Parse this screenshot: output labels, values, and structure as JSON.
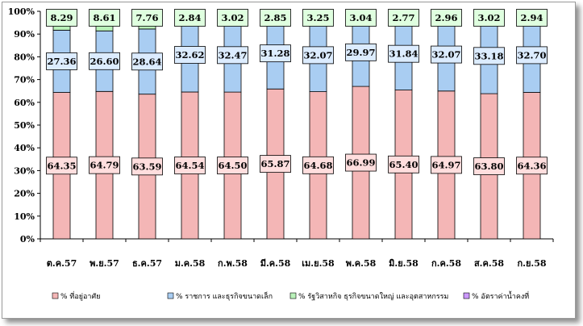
{
  "chart_data": {
    "type": "bar",
    "stacked": true,
    "categories": [
      "ต.ค.57",
      "พ.ย.57",
      "ธ.ค.57",
      "ม.ค.58",
      "ก.พ.58",
      "มี.ค.58",
      "เม.ย.58",
      "พ.ค.58",
      "มิ.ย.58",
      "ก.ค.58",
      "ส.ค.58",
      "ก.ย.58"
    ],
    "series": [
      {
        "name": "% ที่อยู่อาศัย",
        "color": "#f4b6b6",
        "values": [
          64.35,
          64.79,
          63.59,
          64.54,
          64.5,
          65.87,
          64.68,
          66.99,
          65.4,
          64.97,
          63.8,
          64.36
        ]
      },
      {
        "name": "% ราชการ และธุรกิจขนาดเล็ก",
        "color": "#a9cdf2",
        "values": [
          27.36,
          26.6,
          28.64,
          32.62,
          32.47,
          31.28,
          32.07,
          29.97,
          31.84,
          32.07,
          33.18,
          32.7
        ]
      },
      {
        "name": "% รัฐวิสาหกิจ ธุรกิจขนาดใหญ่ และอุตสาหกรรม",
        "color": "#b9f2b9",
        "values": [
          8.29,
          8.61,
          7.76,
          2.84,
          3.02,
          2.85,
          3.25,
          3.04,
          2.77,
          2.96,
          3.02,
          2.94
        ]
      },
      {
        "name": "% อัตราค่าน้ำคงที่",
        "color": "#cc99ff",
        "values": [
          0,
          0,
          0,
          0,
          0,
          0,
          0,
          0,
          0,
          0,
          0,
          0
        ]
      }
    ],
    "label_colors": [
      "#ffdede",
      "#dcecff",
      "#dfffdf"
    ],
    "y_ticks": [
      "0%",
      "10%",
      "20%",
      "30%",
      "40%",
      "50%",
      "60%",
      "70%",
      "80%",
      "90%",
      "100%"
    ],
    "ylim": [
      0,
      100
    ],
    "title": "",
    "xlabel": "",
    "ylabel": "",
    "legend_position": "bottom",
    "grid": false
  }
}
